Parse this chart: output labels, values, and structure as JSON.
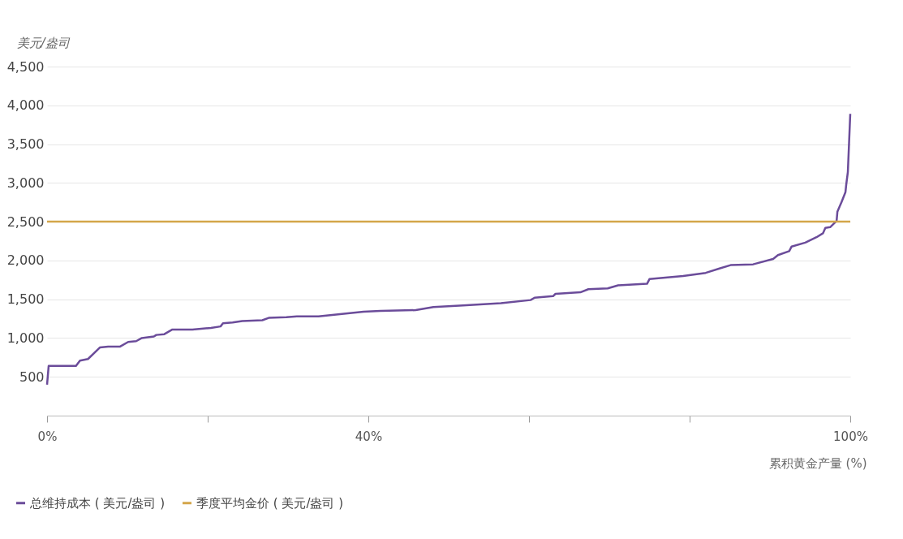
{
  "chart_data": {
    "type": "line",
    "ylabel": "美元/盎司",
    "xlabel": "累积黄金产量 (%)",
    "xlim": [
      0,
      100
    ],
    "ylim": [
      0,
      4500
    ],
    "xticks": [
      {
        "value": 0,
        "label": "0%"
      },
      {
        "value": 20,
        "label": null
      },
      {
        "value": 40,
        "label": "40%"
      },
      {
        "value": 60,
        "label": null
      },
      {
        "value": 80,
        "label": null
      },
      {
        "value": 100,
        "label": "100%"
      }
    ],
    "yticks": [
      500,
      {
        "value": 1000,
        "label": "1,000"
      },
      {
        "value": 1500,
        "label": "1,500"
      },
      {
        "value": 2000,
        "label": "2,000"
      },
      {
        "value": 2500,
        "label": "2,500"
      },
      {
        "value": 3000,
        "label": "3,000"
      },
      {
        "value": 3500,
        "label": "3,500"
      },
      {
        "value": 4000,
        "label": "4,000"
      },
      {
        "value": 4500,
        "label": "4,500"
      }
    ],
    "grid": "y",
    "legend": "bottom",
    "line_style": "solid",
    "series": [
      {
        "name": "总维持成本 ( 美元/盎司 )",
        "color": "#6b4c9a",
        "x": [
          0,
          0.2,
          0.4,
          3.6,
          4.1,
          5.1,
          6.6,
          7.6,
          9.1,
          10.1,
          11.1,
          11.8,
          13.3,
          13.6,
          14.6,
          15.6,
          18.1,
          20.4,
          21.6,
          21.9,
          23.1,
          24.3,
          26.8,
          27.6,
          29.8,
          31.1,
          33.8,
          39.4,
          41.5,
          45.9,
          48.1,
          51.8,
          56.5,
          60.2,
          60.7,
          63.0,
          63.3,
          66.4,
          67.4,
          69.8,
          71.1,
          74.7,
          75.0,
          79.2,
          82.0,
          83.8,
          85.1,
          87.9,
          90.4,
          91.0,
          92.4,
          92.7,
          94.4,
          95.8,
          96.6,
          96.9,
          97.5,
          98.3,
          98.4,
          98.9,
          99.4,
          99.5,
          99.7,
          100
        ],
        "values": [
          400,
          640,
          640,
          640,
          710,
          730,
          880,
          890,
          890,
          950,
          960,
          1000,
          1020,
          1040,
          1050,
          1110,
          1110,
          1130,
          1150,
          1190,
          1200,
          1220,
          1230,
          1260,
          1270,
          1280,
          1280,
          1340,
          1350,
          1360,
          1400,
          1420,
          1450,
          1490,
          1520,
          1540,
          1570,
          1590,
          1630,
          1640,
          1680,
          1700,
          1760,
          1800,
          1840,
          1900,
          1940,
          1950,
          2020,
          2070,
          2120,
          2180,
          2230,
          2300,
          2350,
          2420,
          2430,
          2510,
          2630,
          2750,
          2880,
          2980,
          3140,
          3890
        ]
      },
      {
        "name": "季度平均金价 ( 美元/盎司 )",
        "color": "#d4a64a",
        "x": [
          0,
          100
        ],
        "values": [
          2500,
          2500
        ]
      }
    ]
  }
}
